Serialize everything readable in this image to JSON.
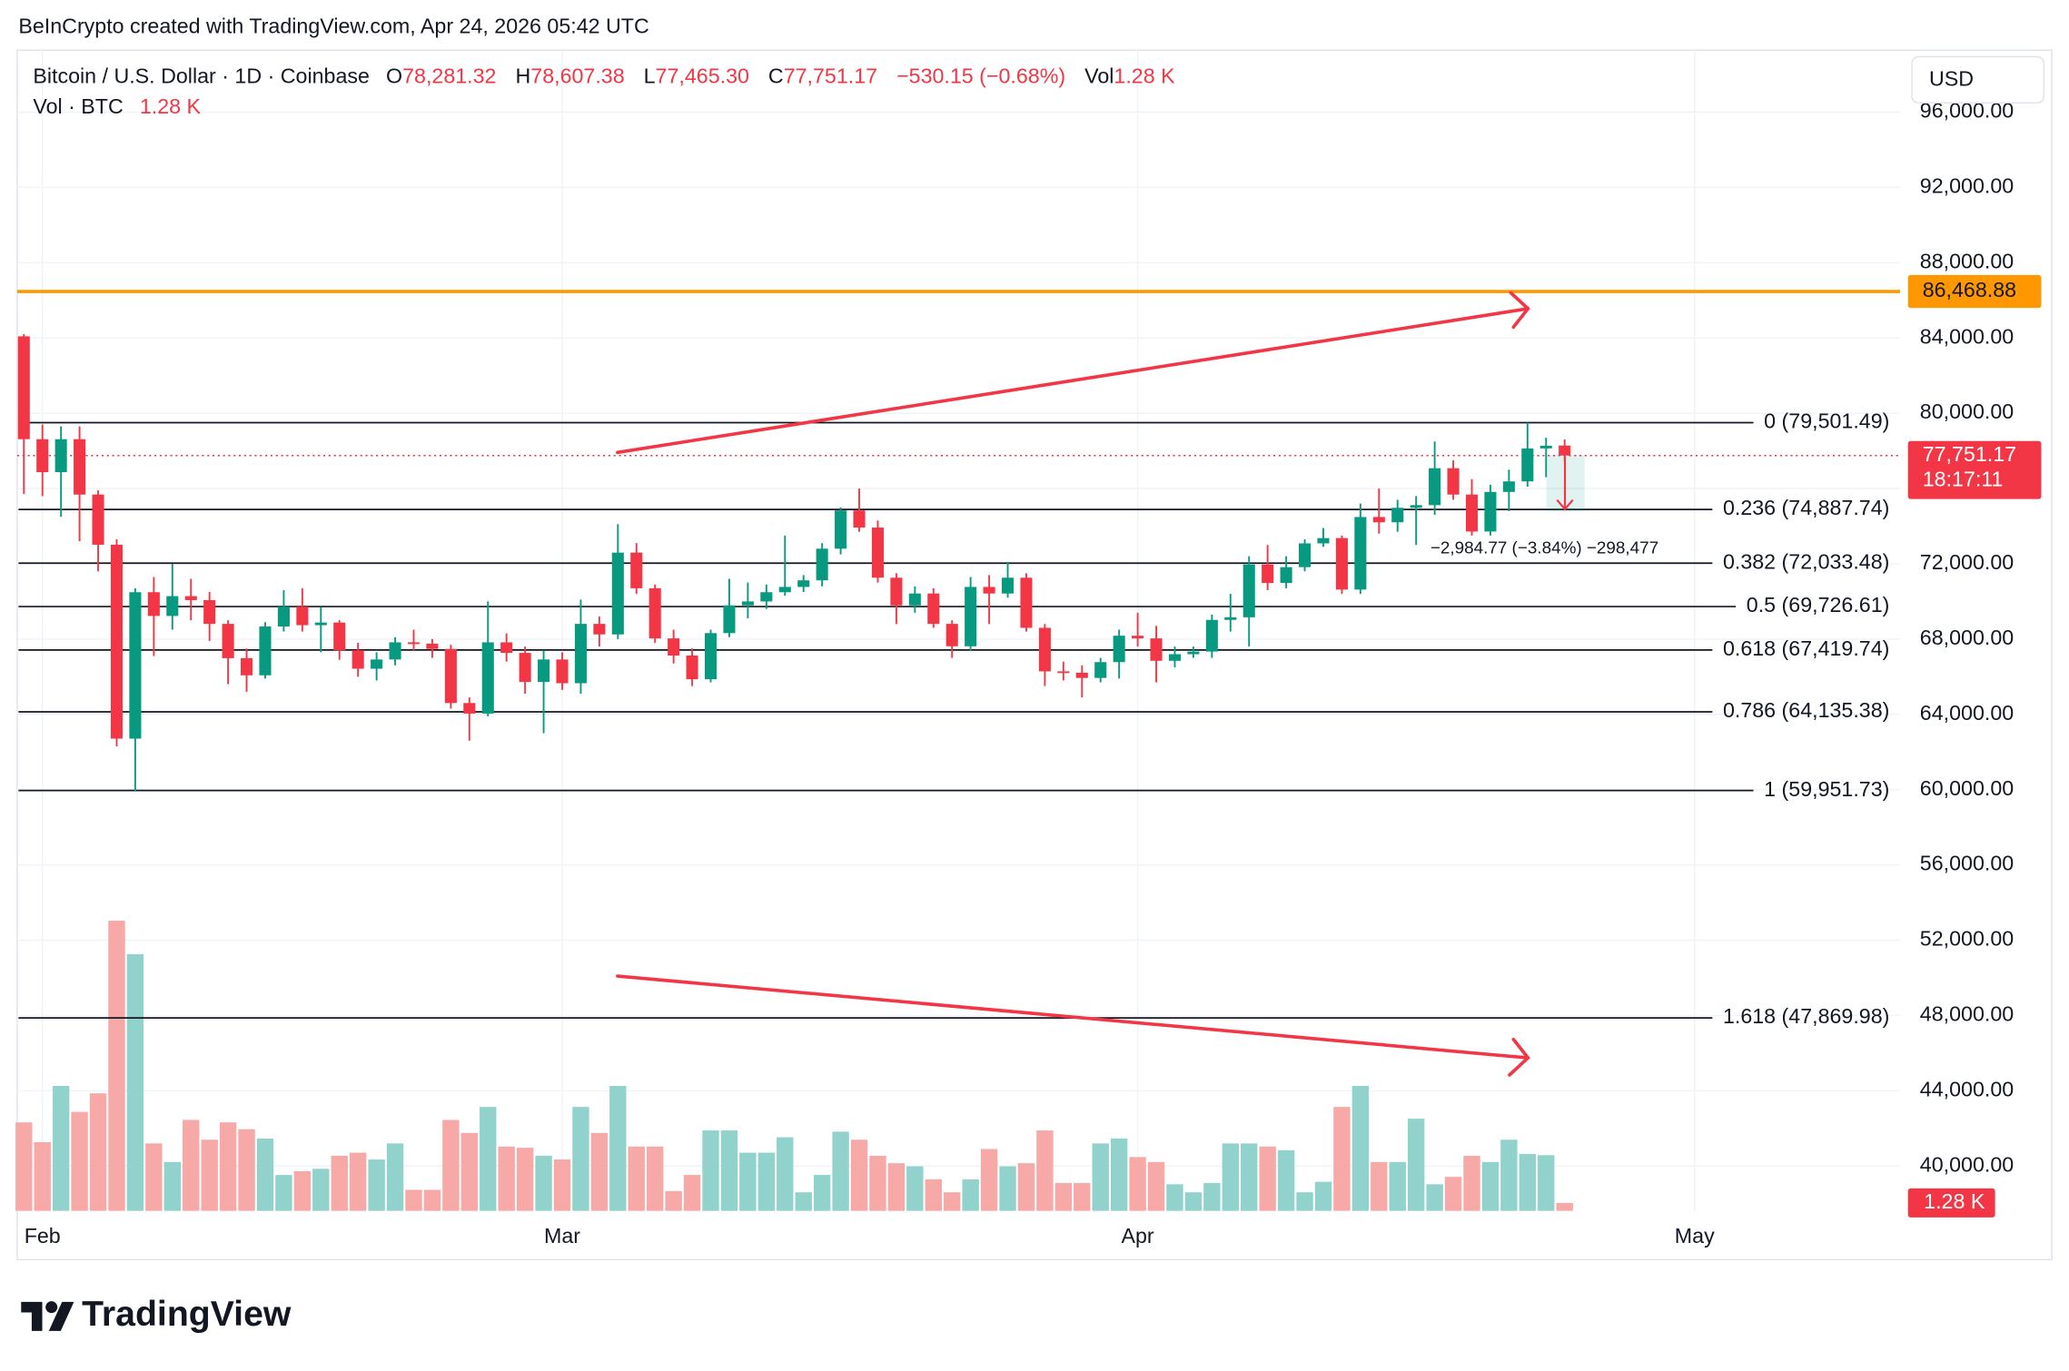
{
  "page_title": "BeInCrypto created with TradingView.com, Apr 24, 2026 05:42 UTC",
  "chart_data": {
    "type": "candlestick",
    "header": {
      "symbol": "Bitcoin / U.S. Dollar · 1D · Coinbase",
      "o": "O",
      "open_label": "78,281.32",
      "h": "H",
      "high_label": "78,607.38",
      "l": "L",
      "low_label": "77,465.30",
      "c": "C",
      "close_label": "77,751.17",
      "change": "−530.15 (−0.68%)",
      "vol": "Vol",
      "vol_line": "Vol · BTC"
    },
    "currency": "USD",
    "open": [
      84087,
      78620,
      76868,
      78620,
      75676,
      73013,
      62710,
      70490,
      69228,
      70280,
      70069,
      68807,
      66985,
      66074,
      68667,
      69719,
      68737,
      68877,
      67405,
      66424,
      66915,
      67826,
      67756,
      67476,
      64602,
      64041,
      67826,
      67265,
      65723,
      66915,
      65653,
      68807,
      68246,
      72592,
      70700,
      68036,
      67125,
      65863,
      68317,
      69789,
      69999,
      70490,
      70770,
      71120,
      72802,
      74835,
      73924,
      71260,
      69789,
      70420,
      68807,
      67616,
      70770,
      70420,
      71260,
      68597,
      66284,
      66214,
      65934,
      66775,
      68177,
      68036,
      66845,
      67195,
      67335,
      69018,
      69158,
      71961,
      70980,
      71821,
      73084,
      73364,
      70630,
      74485,
      74205,
      74976,
      75116,
      77078,
      75676,
      73715,
      75817,
      76377,
      78129,
      78281.32
    ],
    "high": [
      84200,
      79400,
      79300,
      79300,
      75900,
      73300,
      70700,
      71300,
      72000,
      71200,
      70500,
      69000,
      67500,
      68900,
      70600,
      70700,
      69700,
      69000,
      67800,
      67300,
      68100,
      68500,
      68000,
      67700,
      64900,
      70000,
      68300,
      67600,
      67400,
      67300,
      70100,
      69200,
      74100,
      73100,
      70900,
      68500,
      67500,
      68500,
      71200,
      71000,
      70900,
      73500,
      71400,
      73100,
      75000,
      76000,
      74300,
      71500,
      70800,
      70700,
      69000,
      71300,
      71400,
      72100,
      71500,
      68800,
      66800,
      66600,
      67000,
      68500,
      69400,
      68700,
      67600,
      67600,
      69300,
      70400,
      72400,
      73000,
      72400,
      73300,
      73900,
      73500,
      75200,
      76000,
      75400,
      75600,
      78500,
      77500,
      76500,
      76200,
      77000,
      79500,
      78700,
      78607.38
    ],
    "low": [
      75700,
      75600,
      74500,
      73200,
      71600,
      62300,
      59900,
      67100,
      68500,
      69000,
      67900,
      65600,
      65200,
      65900,
      68400,
      68400,
      67300,
      66900,
      66000,
      65800,
      66600,
      67400,
      67000,
      64300,
      62600,
      63900,
      66800,
      65100,
      63000,
      65300,
      65100,
      67600,
      68000,
      70400,
      67800,
      66700,
      65500,
      65700,
      68100,
      69100,
      69600,
      70300,
      70500,
      70800,
      72500,
      73700,
      71000,
      68800,
      69400,
      68600,
      67000,
      67400,
      68800,
      70200,
      68400,
      65500,
      65800,
      64900,
      65700,
      65900,
      67600,
      65700,
      66500,
      67000,
      67000,
      68400,
      67600,
      70600,
      70700,
      71600,
      72900,
      70400,
      70400,
      73600,
      73700,
      73000,
      74600,
      75400,
      73500,
      73500,
      74800,
      76100,
      76600,
      77465.3
    ],
    "close": [
      78620,
      76868,
      78620,
      75676,
      73013,
      62710,
      70490,
      69228,
      70280,
      70069,
      68807,
      66985,
      66074,
      68667,
      69719,
      68737,
      68877,
      67405,
      66424,
      66915,
      67826,
      67756,
      67476,
      64602,
      64041,
      67826,
      67265,
      65723,
      66915,
      65653,
      68807,
      68246,
      72592,
      70700,
      68036,
      67125,
      65863,
      68317,
      69789,
      69999,
      70490,
      70770,
      71120,
      72802,
      74835,
      73924,
      71260,
      69789,
      70420,
      68807,
      67616,
      70770,
      70420,
      71260,
      68597,
      66284,
      66214,
      65934,
      66775,
      68177,
      68036,
      66845,
      67195,
      67335,
      69018,
      69158,
      71961,
      70980,
      71821,
      73084,
      73364,
      70630,
      74485,
      74205,
      74976,
      75116,
      77078,
      75676,
      73715,
      75817,
      76377,
      78129,
      78269,
      77751.17
    ],
    "volume": [
      14300,
      11100,
      20200,
      16000,
      19000,
      46900,
      41500,
      10900,
      7900,
      14700,
      11500,
      14300,
      13200,
      11700,
      5800,
      6400,
      6800,
      8900,
      9400,
      8300,
      10900,
      3400,
      3400,
      14700,
      12600,
      16800,
      10400,
      10200,
      8900,
      8300,
      16800,
      12600,
      20200,
      10400,
      10400,
      3200,
      5800,
      13000,
      13000,
      9400,
      9400,
      11900,
      3000,
      5800,
      12800,
      11500,
      8900,
      7700,
      7200,
      5100,
      3000,
      5100,
      10000,
      7200,
      7700,
      13000,
      4500,
      4500,
      10900,
      11700,
      8700,
      7900,
      4300,
      3000,
      4500,
      10900,
      10900,
      10400,
      9800,
      3000,
      4700,
      16800,
      20200,
      7900,
      7900,
      14900,
      4300,
      5500,
      8900,
      7900,
      11500,
      9200,
      9000,
      1280
    ],
    "volume_label": "1.28 K",
    "volume_ylim": [
      0,
      187600
    ],
    "up_color": "#089981",
    "down_color": "#f23645",
    "volume_up_color": "#92d2cc",
    "volume_down_color": "#f7a9a7",
    "xlim": [
      -0.36,
      101.07
    ],
    "xticks": [
      {
        "value": 1,
        "label": "Feb"
      },
      {
        "value": 29,
        "label": "Mar"
      },
      {
        "value": 60,
        "label": "Apr"
      },
      {
        "value": 90,
        "label": "May"
      }
    ],
    "ylim": [
      37617,
      99293
    ],
    "yticks": [
      {
        "value": 40000,
        "label": "40,000.00"
      },
      {
        "value": 44000,
        "label": "44,000.00"
      },
      {
        "value": 48000,
        "label": "48,000.00"
      },
      {
        "value": 52000,
        "label": "52,000.00"
      },
      {
        "value": 56000,
        "label": "56,000.00"
      },
      {
        "value": 60000,
        "label": "60,000.00"
      },
      {
        "value": 64000,
        "label": "64,000.00"
      },
      {
        "value": 68000,
        "label": "68,000.00"
      },
      {
        "value": 72000,
        "label": "72,000.00"
      },
      {
        "value": 76000,
        "label": "76,000.00"
      },
      {
        "value": 80000,
        "label": "80,000.00"
      },
      {
        "value": 84000,
        "label": "84,000.00"
      },
      {
        "value": 88000,
        "label": "88,000.00"
      },
      {
        "value": 92000,
        "label": "92,000.00"
      },
      {
        "value": 96000,
        "label": "96,000.00"
      }
    ],
    "grid": true,
    "fib_levels": [
      {
        "value": 79501.49,
        "label": "0 (79,501.49)"
      },
      {
        "value": 74887.74,
        "label": "0.236 (74,887.74)"
      },
      {
        "value": 72033.48,
        "label": "0.382 (72,033.48)"
      },
      {
        "value": 69726.61,
        "label": "0.5 (69,726.61)"
      },
      {
        "value": 67419.74,
        "label": "0.618 (67,419.74)"
      },
      {
        "value": 64135.38,
        "label": "0.786 (64,135.38)"
      },
      {
        "value": 59951.73,
        "label": "1 (59,951.73)"
      },
      {
        "value": 47869.98,
        "label": "1.618 (47,869.98)"
      }
    ],
    "fib_color": "#131722",
    "resistance": {
      "value": 86468.88,
      "label": "86,468.88",
      "color": "#ff9800"
    },
    "last_price": {
      "value": 77751.17,
      "label": "77,751.17",
      "countdown": "18:17:11"
    },
    "measure_label": "−2,984.77 (−3.84%) −298,477"
  },
  "footer": {
    "logo": "TradingView"
  }
}
